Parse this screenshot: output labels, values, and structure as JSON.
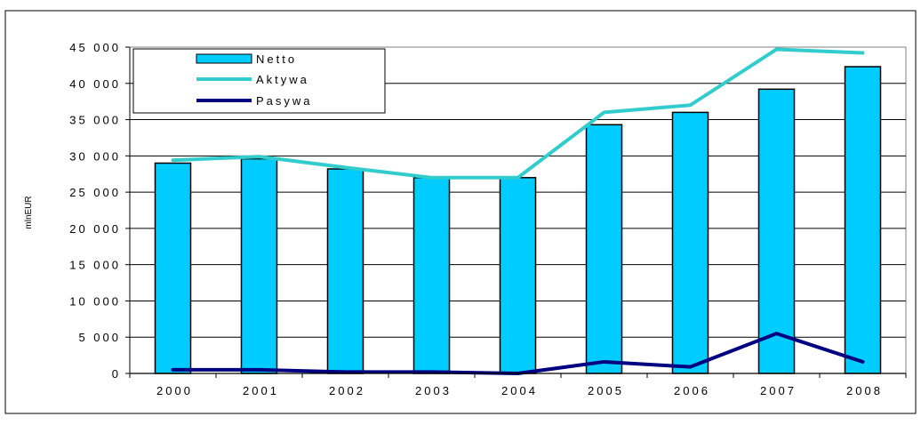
{
  "chart_data": {
    "type": "bar",
    "title": "",
    "xlabel": "",
    "ylabel": "mlnEUR",
    "ylim": [
      0,
      45000
    ],
    "yticks": [
      0,
      5000,
      10000,
      15000,
      20000,
      25000,
      30000,
      35000,
      40000,
      45000
    ],
    "ytick_labels": [
      "0",
      "5 000",
      "10 000",
      "15 000",
      "20 000",
      "25 000",
      "30 000",
      "35 000",
      "40 000",
      "45 000"
    ],
    "categories": [
      "2000",
      "2001",
      "2002",
      "2003",
      "2004",
      "2005",
      "2006",
      "2007",
      "2008"
    ],
    "grid": true,
    "legend_position": "top-left",
    "series": [
      {
        "name": "Netto",
        "type": "bar",
        "color": "#00ccff",
        "values": [
          29000,
          29600,
          28200,
          27000,
          27000,
          34300,
          36000,
          39200,
          42300
        ]
      },
      {
        "name": "Aktywa",
        "type": "line",
        "color": "#33cccc",
        "values": [
          29400,
          29900,
          28400,
          27000,
          27000,
          36000,
          37000,
          44700,
          44200
        ]
      },
      {
        "name": "Pasywa",
        "type": "line",
        "color": "#000080",
        "values": [
          500,
          500,
          200,
          200,
          0,
          1600,
          900,
          5500,
          1600
        ]
      }
    ]
  }
}
